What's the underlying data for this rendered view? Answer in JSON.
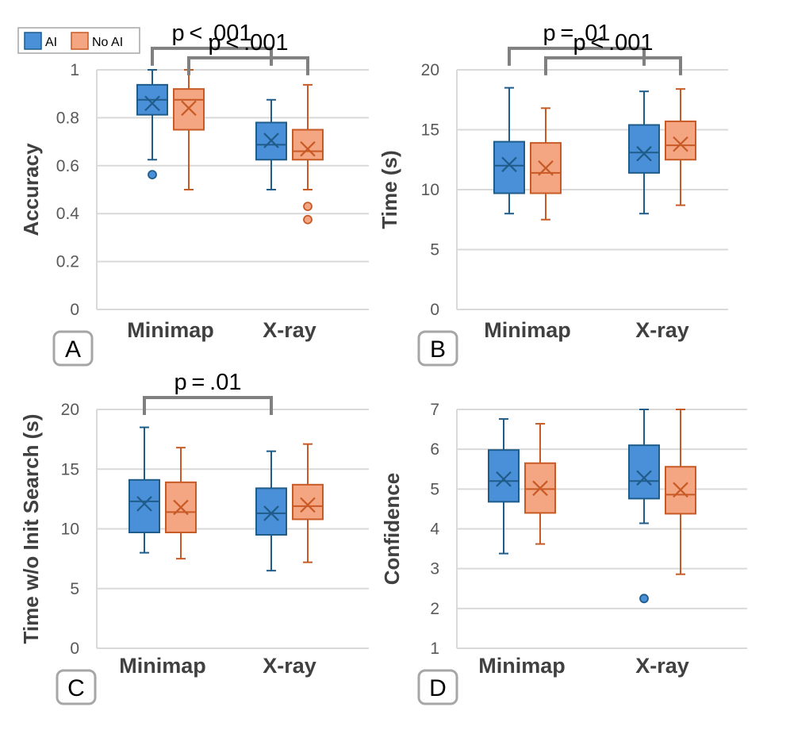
{
  "legend": [
    {
      "name": "AI",
      "fill": "#4a90d9",
      "stroke": "#1f5c8a"
    },
    {
      "name": "No AI",
      "fill": "#f4a582",
      "stroke": "#c75a25"
    }
  ],
  "chart_data": [
    {
      "type": "box",
      "panel": "A",
      "title": "",
      "xlabel": "",
      "ylabel": "Accuracy",
      "ylim": [
        0,
        1
      ],
      "yticks": [
        0,
        0.2,
        0.4,
        0.6,
        0.8,
        1
      ],
      "ytick_labels": [
        "0",
        "0.2",
        "0.4",
        "0.6",
        "0.8",
        "1"
      ],
      "categories": [
        "Minimap",
        "X-ray"
      ],
      "series": [
        {
          "name": "AI",
          "boxes": [
            {
              "whisker_low": 0.625,
              "q1": 0.8125,
              "median": 0.875,
              "q3": 0.9375,
              "whisker_high": 1.0,
              "mean": 0.86,
              "outliers": [
                0.5625
              ]
            },
            {
              "whisker_low": 0.5,
              "q1": 0.625,
              "median": 0.6875,
              "q3": 0.78,
              "whisker_high": 0.875,
              "mean": 0.705,
              "outliers": []
            }
          ]
        },
        {
          "name": "No AI",
          "boxes": [
            {
              "whisker_low": 0.5,
              "q1": 0.75,
              "median": 0.875,
              "q3": 0.92,
              "whisker_high": 1.0,
              "mean": 0.84,
              "outliers": []
            },
            {
              "whisker_low": 0.5,
              "q1": 0.625,
              "median": 0.66,
              "q3": 0.75,
              "whisker_high": 0.9375,
              "mean": 0.67,
              "outliers": [
                0.43,
                0.375
              ]
            }
          ]
        }
      ],
      "significance": [
        {
          "label": "p < .001",
          "level": 1.09,
          "from": [
            0,
            0
          ],
          "to": [
            1,
            0
          ]
        },
        {
          "label": "p < .001",
          "level": 1.05,
          "from": [
            0,
            1
          ],
          "to": [
            1,
            1
          ]
        }
      ]
    },
    {
      "type": "box",
      "panel": "B",
      "title": "",
      "xlabel": "",
      "ylabel": "Time (s)",
      "ylim": [
        0,
        20
      ],
      "yticks": [
        0,
        5,
        10,
        15,
        20
      ],
      "ytick_labels": [
        "0",
        "5",
        "10",
        "15",
        "20"
      ],
      "categories": [
        "Minimap",
        "X-ray"
      ],
      "series": [
        {
          "name": "AI",
          "boxes": [
            {
              "whisker_low": 8.0,
              "q1": 9.7,
              "median": 12.0,
              "q3": 14.0,
              "whisker_high": 18.5,
              "mean": 12.1,
              "outliers": []
            },
            {
              "whisker_low": 8.0,
              "q1": 11.4,
              "median": 13.1,
              "q3": 15.4,
              "whisker_high": 18.2,
              "mean": 13.0,
              "outliers": []
            }
          ]
        },
        {
          "name": "No AI",
          "boxes": [
            {
              "whisker_low": 7.5,
              "q1": 9.7,
              "median": 11.4,
              "q3": 13.9,
              "whisker_high": 16.8,
              "mean": 11.8,
              "outliers": []
            },
            {
              "whisker_low": 8.7,
              "q1": 12.5,
              "median": 13.7,
              "q3": 15.7,
              "whisker_high": 18.4,
              "mean": 13.8,
              "outliers": []
            }
          ]
        }
      ],
      "significance": [
        {
          "label": "p = .01",
          "level": 21.8,
          "from": [
            0,
            0
          ],
          "to": [
            1,
            0
          ]
        },
        {
          "label": "p < .001",
          "level": 21.0,
          "from": [
            0,
            1
          ],
          "to": [
            1,
            1
          ]
        }
      ]
    },
    {
      "type": "box",
      "panel": "C",
      "title": "",
      "xlabel": "",
      "ylabel": "Time w/o Init Search (s)",
      "ylim": [
        0,
        20
      ],
      "yticks": [
        0,
        5,
        10,
        15,
        20
      ],
      "ytick_labels": [
        "0",
        "5",
        "10",
        "15",
        "20"
      ],
      "categories": [
        "Minimap",
        "X-ray"
      ],
      "series": [
        {
          "name": "AI",
          "boxes": [
            {
              "whisker_low": 8.0,
              "q1": 9.7,
              "median": 12.3,
              "q3": 14.1,
              "whisker_high": 18.5,
              "mean": 12.1,
              "outliers": []
            },
            {
              "whisker_low": 6.5,
              "q1": 9.5,
              "median": 11.3,
              "q3": 13.4,
              "whisker_high": 16.5,
              "mean": 11.3,
              "outliers": []
            }
          ]
        },
        {
          "name": "No AI",
          "boxes": [
            {
              "whisker_low": 7.5,
              "q1": 9.7,
              "median": 11.4,
              "q3": 13.9,
              "whisker_high": 16.8,
              "mean": 11.8,
              "outliers": []
            },
            {
              "whisker_low": 7.2,
              "q1": 10.8,
              "median": 11.9,
              "q3": 13.7,
              "whisker_high": 17.1,
              "mean": 12.0,
              "outliers": []
            }
          ]
        }
      ],
      "significance": [
        {
          "label": "p = .01",
          "level": 21.0,
          "from": [
            0,
            0
          ],
          "to": [
            1,
            0
          ]
        }
      ]
    },
    {
      "type": "box",
      "panel": "D",
      "title": "",
      "xlabel": "",
      "ylabel": "Confidence",
      "ylim": [
        1,
        7
      ],
      "yticks": [
        1,
        2,
        3,
        4,
        5,
        6,
        7
      ],
      "ytick_labels": [
        "1",
        "2",
        "3",
        "4",
        "5",
        "6",
        "7"
      ],
      "categories": [
        "Minimap",
        "X-ray"
      ],
      "series": [
        {
          "name": "AI",
          "boxes": [
            {
              "whisker_low": 3.38,
              "q1": 4.68,
              "median": 5.2,
              "q3": 5.98,
              "whisker_high": 6.76,
              "mean": 5.25,
              "outliers": []
            },
            {
              "whisker_low": 4.14,
              "q1": 4.76,
              "median": 5.2,
              "q3": 6.1,
              "whisker_high": 7.0,
              "mean": 5.28,
              "outliers": [
                2.25
              ]
            }
          ]
        },
        {
          "name": "No AI",
          "boxes": [
            {
              "whisker_low": 3.62,
              "q1": 4.4,
              "median": 5.0,
              "q3": 5.65,
              "whisker_high": 6.64,
              "mean": 5.02,
              "outliers": []
            },
            {
              "whisker_low": 2.86,
              "q1": 4.38,
              "median": 4.86,
              "q3": 5.56,
              "whisker_high": 7.0,
              "mean": 4.98,
              "outliers": []
            }
          ]
        }
      ],
      "significance": []
    }
  ]
}
